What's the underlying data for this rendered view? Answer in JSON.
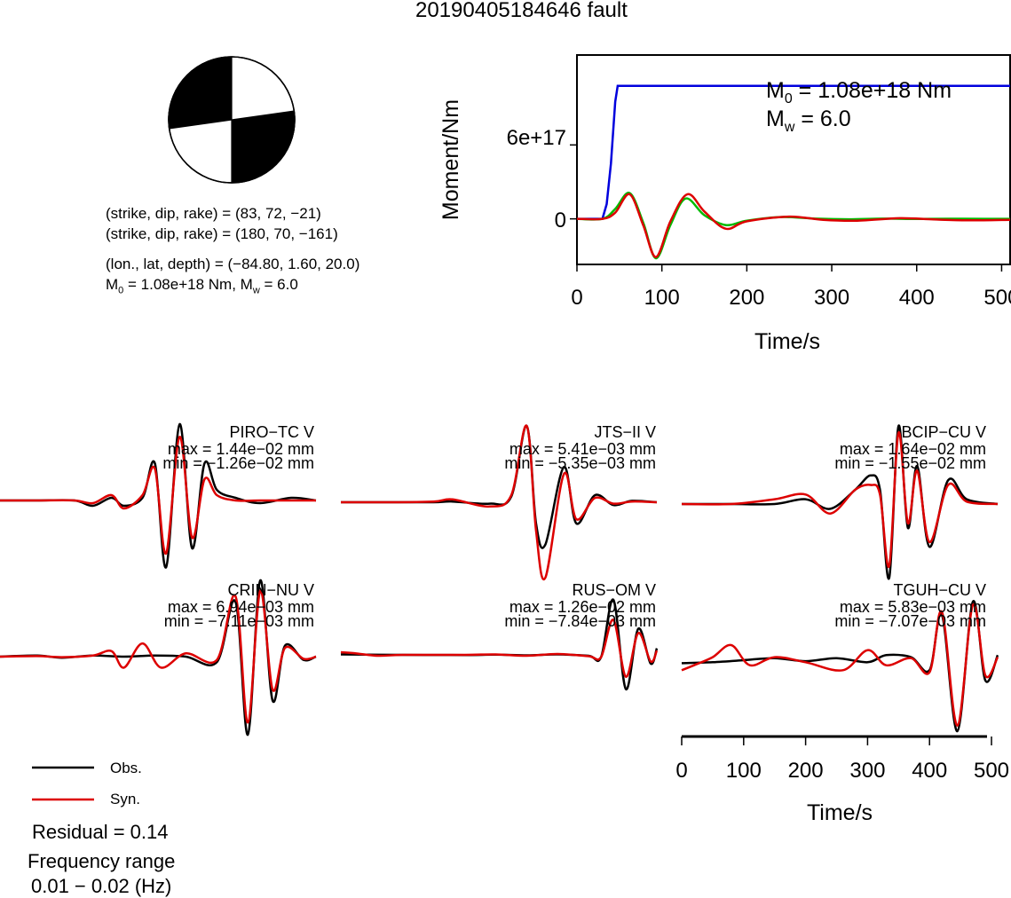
{
  "title": "20190405184646 fault",
  "mechanism": {
    "line1": "(strike, dip, rake) = (83, 72, −21)",
    "line2": "(strike, dip, rake) = (180, 70, −161)",
    "line3": "(lon., lat, depth) = (−84.80, 1.60, 20.0)",
    "line4_m0": "1.08e+18 Nm",
    "line4_mw": "6.0"
  },
  "moment_panel": {
    "m0_text": "1.08e+18 Nm",
    "mw_text": "6.0"
  },
  "legend": {
    "obs": "Obs.",
    "syn": "Syn.",
    "residual": "Residual = 0.14",
    "freq_label": "Frequency range",
    "freq_value": "0.01 − 0.02 (Hz)"
  },
  "colors": {
    "observed": "#000000",
    "synthetic": "#dd0000",
    "moment_rate": "#00bb00",
    "cumulative_moment": "#0000dd"
  },
  "chart_data": [
    {
      "type": "line",
      "title": "",
      "xlabel": "Time/s",
      "ylabel": "Moment/Nm",
      "xlim": [
        0,
        510
      ],
      "ylim": [
        -3.7e+17,
        1.33e+18
      ],
      "x_ticks": [
        0,
        100,
        200,
        300,
        400,
        500
      ],
      "y_ticks": [
        0,
        6e+17
      ],
      "y_tick_labels": [
        "0",
        "6e+17"
      ],
      "annotations": [
        "M0 = 1.08e+18 Nm",
        "Mw = 6.0"
      ],
      "series": [
        {
          "color": "#0000dd",
          "x": [
            0,
            30,
            35,
            40,
            45,
            48,
            510
          ],
          "y": [
            0,
            0,
            1.2e+17,
            4.5e+17,
            9.5e+17,
            1.08e+18,
            1.08e+18
          ]
        },
        {
          "color": "#00bb00",
          "x": [
            0,
            30,
            45,
            62,
            78,
            93,
            110,
            128,
            150,
            175,
            200,
            240,
            280,
            320,
            360,
            400,
            440,
            480,
            510
          ],
          "y": [
            0,
            0,
            8e+16,
            2.1e+17,
            -3e+16,
            -3.2e+17,
            -5e+16,
            1.65e+17,
            3e+16,
            -5e+16,
            -1.5e+16,
            1.5e+16,
            2000000000000000.0,
            -3000000000000000.0,
            2000000000000000.0,
            -1000000000000000.0,
            1000000000000000.0,
            0,
            0
          ]
        },
        {
          "color": "#dd0000",
          "x": [
            0,
            30,
            45,
            62,
            78,
            93,
            110,
            130,
            150,
            175,
            200,
            250,
            290,
            330,
            380,
            420,
            460,
            510
          ],
          "y": [
            0,
            0,
            5e+16,
            2e+17,
            -5e+16,
            -3.1e+17,
            -2e+16,
            2e+17,
            6e+16,
            -8e+16,
            -2e+16,
            1.8e+16,
            -8000000000000000.0,
            -1.5e+16,
            5000000000000000.0,
            -5000000000000000.0,
            -1.2e+16,
            -8000000000000000.0
          ]
        }
      ]
    },
    {
      "type": "line",
      "title": "PIRO−TC V",
      "xlabel": "Time/s",
      "xlim": [
        0,
        510
      ],
      "x_ticks": [
        0,
        100,
        200,
        300,
        400,
        500
      ],
      "max_label": "max = 1.44e−02 mm",
      "min_label": "min = −1.26e−02 mm",
      "series": [
        {
          "name": "Obs.",
          "color": "#000000",
          "x": [
            0,
            60,
            120,
            150,
            180,
            200,
            230,
            250,
            268,
            290,
            310,
            330,
            350,
            380,
            420,
            470,
            510
          ],
          "y": [
            0,
            0,
            0,
            -0.1,
            0.05,
            -0.1,
            0.05,
            0.7,
            -1.26,
            1.44,
            -0.9,
            0.7,
            0.2,
            0.05,
            -0.05,
            0.05,
            0
          ]
        },
        {
          "name": "Syn.",
          "color": "#dd0000",
          "x": [
            0,
            60,
            120,
            150,
            180,
            200,
            230,
            250,
            268,
            290,
            310,
            330,
            350,
            380,
            420,
            470,
            510
          ],
          "y": [
            0,
            0,
            0,
            -0.05,
            0.1,
            -0.15,
            0.1,
            0.6,
            -1.0,
            1.2,
            -0.7,
            0.4,
            0.1,
            0,
            0,
            0,
            0
          ]
        }
      ]
    },
    {
      "type": "line",
      "title": "JTS−II V",
      "xlabel": "Time/s",
      "xlim": [
        0,
        510
      ],
      "x_ticks": [
        0,
        100,
        200,
        300,
        400,
        500
      ],
      "max_label": "max = 5.41e−03 mm",
      "min_label": "min = −5.35e−03 mm",
      "series": [
        {
          "name": "Obs.",
          "color": "#000000",
          "x": [
            0,
            80,
            150,
            180,
            240,
            275,
            300,
            315,
            330,
            360,
            380,
            410,
            440,
            470,
            510
          ],
          "y": [
            0,
            0,
            0,
            0.05,
            -0.1,
            0.4,
            5.41,
            -1.5,
            -3.0,
            2.5,
            -1.5,
            0.5,
            -0.2,
            0.1,
            0
          ]
        },
        {
          "name": "Syn.",
          "color": "#dd0000",
          "x": [
            0,
            80,
            150,
            180,
            240,
            275,
            300,
            315,
            330,
            360,
            380,
            410,
            440,
            470,
            510
          ],
          "y": [
            0,
            0,
            0.05,
            0.2,
            -0.3,
            0.5,
            5.41,
            -2.0,
            -5.35,
            2.0,
            -1.2,
            0.3,
            -0.1,
            0.05,
            0
          ]
        }
      ]
    },
    {
      "type": "line",
      "title": "BCIP−CU V",
      "xlabel": "Time/s",
      "xlim": [
        0,
        510
      ],
      "x_ticks": [
        0,
        100,
        200,
        300,
        400,
        500
      ],
      "max_label": "max = 1.64e−02 mm",
      "min_label": "min = −1.55e−02 mm",
      "series": [
        {
          "name": "Obs.",
          "color": "#000000",
          "x": [
            0,
            80,
            150,
            200,
            240,
            280,
            305,
            320,
            335,
            350,
            365,
            380,
            400,
            430,
            460,
            510
          ],
          "y": [
            0,
            0,
            0,
            0.1,
            -0.1,
            0.3,
            0.6,
            0.3,
            -1.55,
            1.64,
            -0.5,
            0.8,
            -0.9,
            0.5,
            0.1,
            0
          ]
        },
        {
          "name": "Syn.",
          "color": "#dd0000",
          "x": [
            0,
            80,
            150,
            200,
            240,
            280,
            305,
            320,
            335,
            350,
            365,
            380,
            400,
            430,
            460,
            510
          ],
          "y": [
            0,
            0,
            0.1,
            0.2,
            -0.2,
            0.3,
            0.4,
            0.2,
            -1.3,
            1.5,
            -0.4,
            0.7,
            -0.8,
            0.4,
            0.05,
            0
          ]
        }
      ]
    },
    {
      "type": "line",
      "title": "CRIN−NU V",
      "xlabel": "Time/s",
      "xlim": [
        0,
        510
      ],
      "x_ticks": [
        0,
        100,
        200,
        300,
        400,
        500
      ],
      "max_label": "max = 6.94e−03 mm",
      "min_label": "min = −7.11e−03 mm",
      "series": [
        {
          "name": "Obs.",
          "color": "#000000",
          "x": [
            0,
            60,
            100,
            150,
            200,
            250,
            300,
            350,
            380,
            400,
            420,
            440,
            460,
            490,
            510
          ],
          "y": [
            0,
            0.1,
            -0.1,
            0.1,
            0,
            0.1,
            0,
            -0.5,
            5.0,
            -7.11,
            6.94,
            -4.0,
            1.0,
            -0.3,
            0
          ]
        },
        {
          "name": "Syn.",
          "color": "#dd0000",
          "x": [
            0,
            60,
            100,
            150,
            180,
            200,
            230,
            260,
            300,
            350,
            380,
            400,
            420,
            440,
            460,
            490,
            510
          ],
          "y": [
            0,
            0.05,
            -0.05,
            0.1,
            0.5,
            -1.0,
            1.2,
            -1.0,
            0.3,
            -0.3,
            5.5,
            -6.0,
            6.0,
            -3.0,
            0.8,
            -0.2,
            0
          ]
        }
      ]
    },
    {
      "type": "line",
      "title": "RUS−OM V",
      "xlabel": "Time/s",
      "xlim": [
        0,
        510
      ],
      "x_ticks": [
        0,
        100,
        200,
        300,
        400,
        500
      ],
      "max_label": "max = 1.26e−02 mm",
      "min_label": "min = −7.84e−03 mm",
      "series": [
        {
          "name": "Obs.",
          "color": "#000000",
          "x": [
            0,
            100,
            200,
            250,
            300,
            350,
            400,
            420,
            440,
            460,
            480,
            500,
            510
          ],
          "y": [
            0.1,
            0,
            -0.05,
            0.05,
            -0.1,
            0.1,
            -0.2,
            -0.5,
            12.6,
            -7.84,
            6.0,
            -2.0,
            1.5
          ]
        },
        {
          "name": "Syn.",
          "color": "#dd0000",
          "x": [
            0,
            20,
            60,
            100,
            200,
            250,
            300,
            350,
            400,
            420,
            440,
            460,
            480,
            500,
            510
          ],
          "y": [
            0.6,
            0.4,
            -0.2,
            0,
            0,
            0.1,
            -0.2,
            0.2,
            -0.3,
            -0.5,
            8.0,
            -5.0,
            5.0,
            -1.5,
            1.0
          ]
        }
      ]
    },
    {
      "type": "line",
      "title": "TGUH−CU V",
      "xlabel": "Time/s",
      "xlim": [
        0,
        510
      ],
      "x_ticks": [
        0,
        100,
        200,
        300,
        400,
        500
      ],
      "max_label": "max = 5.83e−03 mm",
      "min_label": "min = −7.07e−03 mm",
      "series": [
        {
          "name": "Obs.",
          "color": "#000000",
          "x": [
            0,
            50,
            100,
            150,
            200,
            250,
            300,
            330,
            370,
            400,
            420,
            445,
            470,
            490,
            510
          ],
          "y": [
            -0.3,
            -0.2,
            0,
            0.2,
            -0.1,
            0.2,
            -0.2,
            0.5,
            0.3,
            -1.0,
            4.5,
            -7.07,
            5.83,
            -2.0,
            0.5
          ]
        },
        {
          "name": "Syn.",
          "color": "#dd0000",
          "x": [
            0,
            20,
            50,
            80,
            110,
            150,
            200,
            260,
            300,
            330,
            370,
            400,
            420,
            445,
            470,
            490,
            510
          ],
          "y": [
            -1.0,
            -0.5,
            0.3,
            1.5,
            -0.5,
            0.3,
            -0.2,
            -1.0,
            1.0,
            -0.5,
            0.2,
            -1.2,
            4.8,
            -6.5,
            5.5,
            -1.5,
            0.3
          ]
        }
      ]
    }
  ]
}
